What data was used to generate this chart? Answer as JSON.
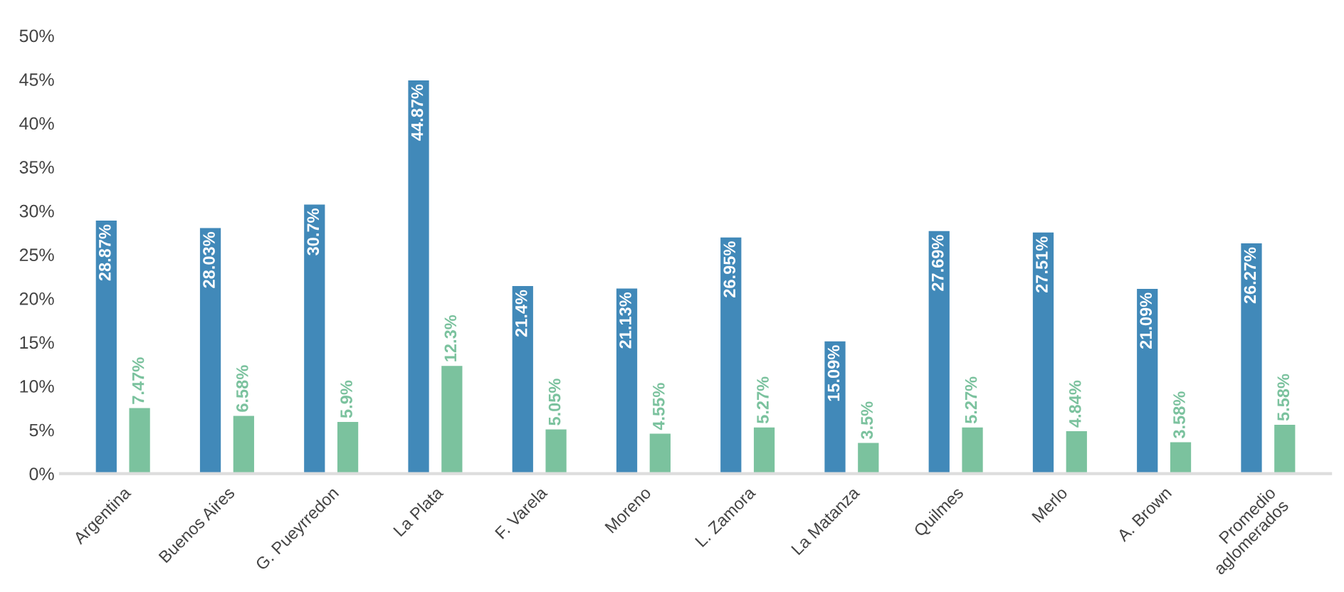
{
  "chart_data": {
    "type": "bar",
    "categories": [
      "Argentina",
      "Buenos Aires",
      "G. Pueyrredon",
      "La Plata",
      "F. Varela",
      "Moreno",
      "L. Zamora",
      "La Matanza",
      "Quilmes",
      "Merlo",
      "A. Brown",
      "Promedio\naglomerados"
    ],
    "series": [
      {
        "color": "#4189b9",
        "values": [
          28.87,
          28.03,
          30.7,
          44.87,
          21.4,
          21.13,
          26.95,
          15.09,
          27.69,
          27.51,
          21.09,
          26.27
        ],
        "value_labels": [
          "28.87%",
          "28.03%",
          "30.7%",
          "44.87%",
          "21.4%",
          "21.13%",
          "26.95%",
          "15.09%",
          "27.69%",
          "27.51%",
          "21.09%",
          "26.27%"
        ]
      },
      {
        "color": "#7bc29e",
        "values": [
          7.47,
          6.58,
          5.9,
          12.3,
          5.05,
          4.55,
          5.27,
          3.5,
          5.27,
          4.84,
          3.58,
          5.58
        ],
        "value_labels": [
          "7.47%",
          "6.58%",
          "5.9%",
          "12.3%",
          "5.05%",
          "4.55%",
          "5.27%",
          "3.5%",
          "5.27%",
          "4.84%",
          "3.58%",
          "5.58%"
        ]
      }
    ],
    "ylim": [
      0,
      50
    ],
    "yticks": [
      {
        "value": 0,
        "label": "0%"
      },
      {
        "value": 5,
        "label": "5%"
      },
      {
        "value": 10,
        "label": "10%"
      },
      {
        "value": 15,
        "label": "15%"
      },
      {
        "value": 20,
        "label": "20%"
      },
      {
        "value": 25,
        "label": "25%"
      },
      {
        "value": 30,
        "label": "30%"
      },
      {
        "value": 35,
        "label": "35%"
      },
      {
        "value": 40,
        "label": "40%"
      },
      {
        "value": 45,
        "label": "45%"
      },
      {
        "value": 50,
        "label": "50%"
      }
    ],
    "grid": false,
    "legend": false
  }
}
